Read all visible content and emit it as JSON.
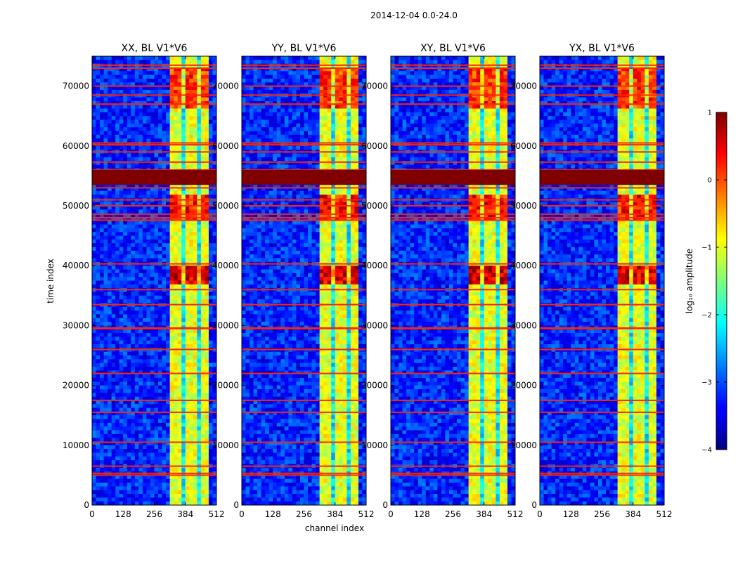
{
  "figure": {
    "suptitle": "2014-12-04 0.0-24.0",
    "ylabel": "time index",
    "xlabel": "channel index",
    "colorbar_label": "log₁₀ amplitude"
  },
  "chart_data": {
    "type": "heatmap",
    "suptitle": "2014-12-04 0.0-24.0",
    "xlabel": "channel index",
    "ylabel": "time index",
    "xlim": [
      0,
      512
    ],
    "ylim": [
      0,
      75000
    ],
    "x_ticks": [
      0,
      128,
      256,
      384,
      512
    ],
    "y_ticks": [
      0,
      10000,
      20000,
      30000,
      40000,
      50000,
      60000,
      70000
    ],
    "colorbar": {
      "label": "log₁₀ amplitude",
      "range": [
        -4,
        1
      ],
      "ticks": [
        -4,
        -3,
        -2,
        -1,
        0,
        1
      ],
      "tick_labels": [
        "−4",
        "−3",
        "−2",
        "−1",
        "0",
        "1"
      ],
      "colormap": "jet"
    },
    "panels": [
      {
        "title": "XX, BL V1*V6"
      },
      {
        "title": "YY, BL V1*V6"
      },
      {
        "title": "XY, BL V1*V6"
      },
      {
        "title": "YX, BL V1*V6"
      }
    ],
    "features": {
      "background_level": -3.2,
      "rfi_channel_band": [
        325,
        475
      ],
      "rfi_band_level": -1.0,
      "strong_rfi_rows": [
        {
          "from": 37000,
          "to": 40000,
          "level": 0.6
        },
        {
          "from": 47500,
          "to": 52000,
          "level": 0.3
        },
        {
          "from": 66000,
          "to": 73000,
          "level": 0.1
        }
      ],
      "saturated_block_rows": [
        53500,
        56000
      ],
      "flagged_rows": [
        5000,
        5300,
        6500,
        10500,
        15500,
        17500,
        22000,
        26000,
        29500,
        29600,
        33500,
        36000,
        40300,
        47600,
        48000,
        48600,
        50000,
        51000,
        53000,
        56000,
        57300,
        59000,
        60200,
        60500,
        67000,
        68500,
        70000,
        73000,
        73500
      ]
    }
  }
}
